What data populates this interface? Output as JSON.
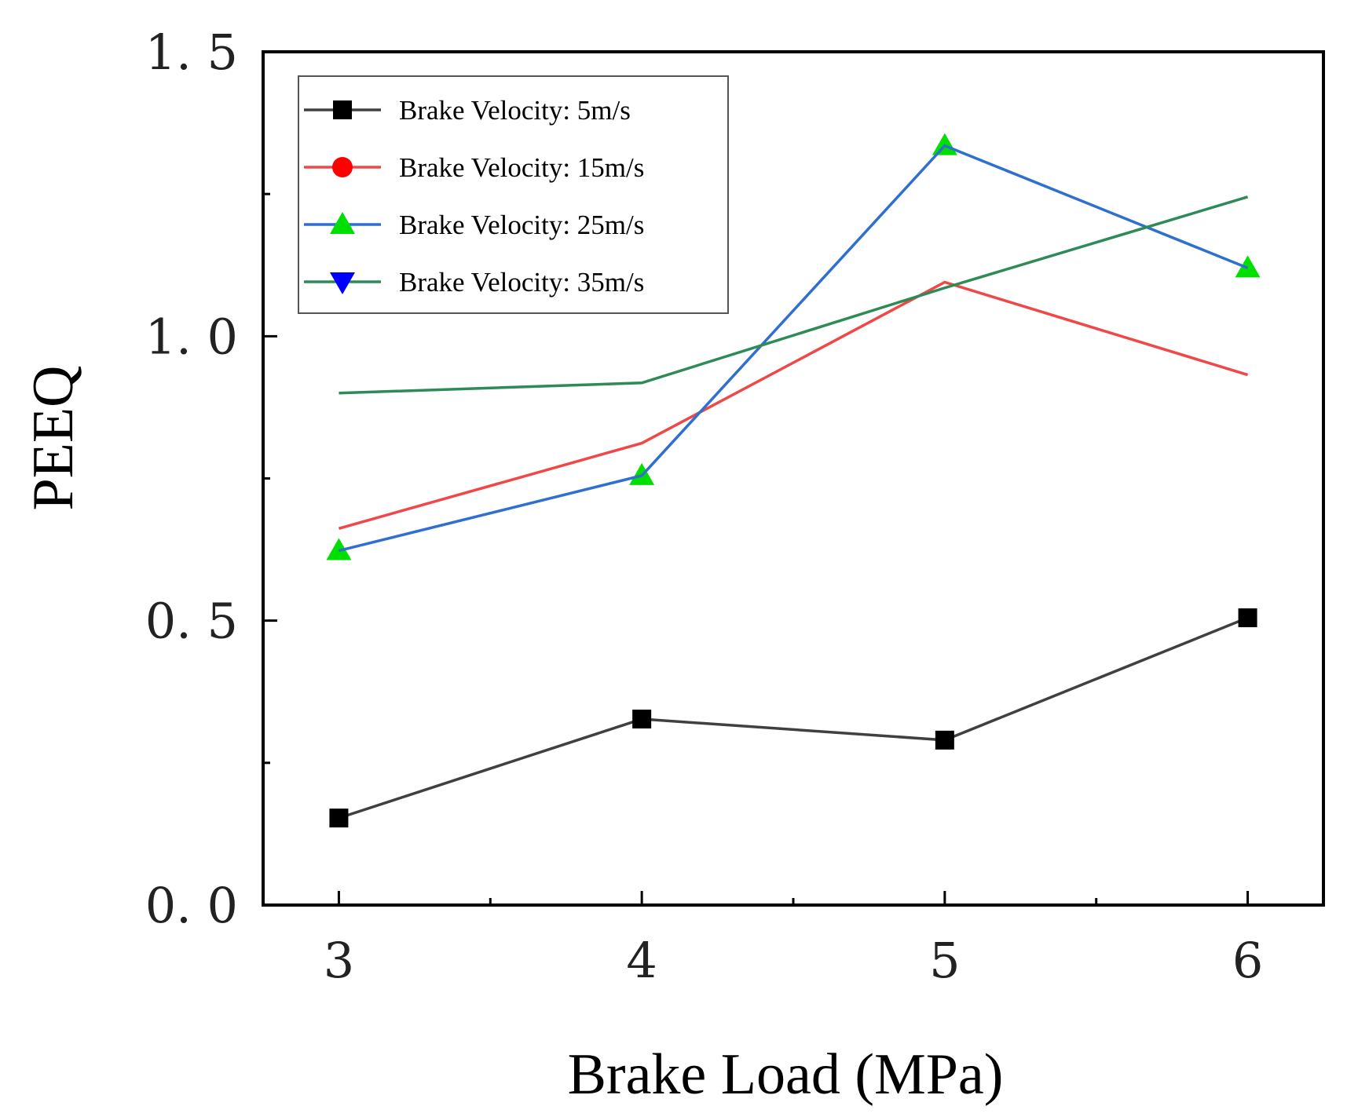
{
  "chart_data": {
    "type": "line",
    "title": "",
    "xlabel": "Brake Load (MPa)",
    "ylabel": "PEEQ",
    "x": [
      3,
      4,
      5,
      6
    ],
    "xlim": [
      2.75,
      6.25
    ],
    "ylim": [
      0.0,
      1.5
    ],
    "yticks": [
      0.0,
      0.5,
      1.0,
      1.5
    ],
    "ytick_labels": [
      "0. 0",
      "0. 5",
      "1. 0",
      "1. 5"
    ],
    "xtick_labels": [
      "3",
      "4",
      "5",
      "6"
    ],
    "legend_position": "top-left",
    "grid": false,
    "series": [
      {
        "name": "Brake Velocity: 5m/s",
        "values": [
          0.153,
          0.327,
          0.29,
          0.505
        ],
        "line_color": "#404040",
        "marker_color": "#000000",
        "marker": "square"
      },
      {
        "name": "Brake Velocity: 15m/s",
        "values": [
          0.662,
          0.812,
          1.095,
          0.932
        ],
        "line_color": "#f04848",
        "marker_color": "#ff0000",
        "marker": "circle"
      },
      {
        "name": "Brake Velocity: 25m/s",
        "values": [
          0.623,
          0.755,
          1.335,
          1.12
        ],
        "line_color": "#2f6fd0",
        "marker_color": "#00e000",
        "marker": "triangle-up"
      },
      {
        "name": "Brake Velocity: 35m/s",
        "values": [
          0.9,
          0.918,
          1.085,
          1.245
        ],
        "line_color": "#2e8b57",
        "marker_color": "#0000ff",
        "marker": "triangle-down"
      }
    ]
  }
}
